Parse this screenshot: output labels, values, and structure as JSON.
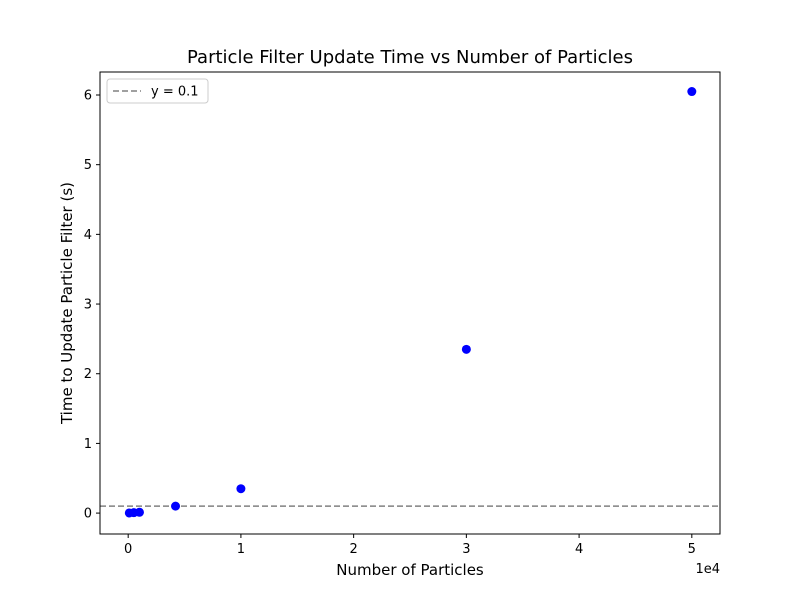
{
  "chart_data": {
    "type": "scatter",
    "title": "Particle Filter Update Time vs Number of Particles",
    "xlabel": "Number of Particles",
    "ylabel": "Time to Update Particle Filter (s)",
    "x_offset_text": "1e4",
    "xlim": [
      -2500,
      52500
    ],
    "ylim": [
      -0.3,
      6.33
    ],
    "x_tick_values": [
      0,
      10000,
      20000,
      30000,
      40000,
      50000
    ],
    "x_tick_labels": [
      "0",
      "1",
      "2",
      "3",
      "4",
      "5"
    ],
    "y_tick_values": [
      0,
      1,
      2,
      3,
      4,
      5,
      6
    ],
    "y_tick_labels": [
      "0",
      "1",
      "2",
      "3",
      "4",
      "5",
      "6"
    ],
    "points": [
      {
        "x": 100,
        "y": 0.002
      },
      {
        "x": 500,
        "y": 0.006
      },
      {
        "x": 1000,
        "y": 0.012
      },
      {
        "x": 4200,
        "y": 0.1
      },
      {
        "x": 10000,
        "y": 0.35
      },
      {
        "x": 30000,
        "y": 2.35
      },
      {
        "x": 50000,
        "y": 6.05
      }
    ],
    "point_color": "#0000ff",
    "reference_line": {
      "y": 0.1,
      "label": "y = 0.1",
      "color": "#808080",
      "style": "dashed"
    },
    "legend_position": "upper-left",
    "grid": false
  }
}
